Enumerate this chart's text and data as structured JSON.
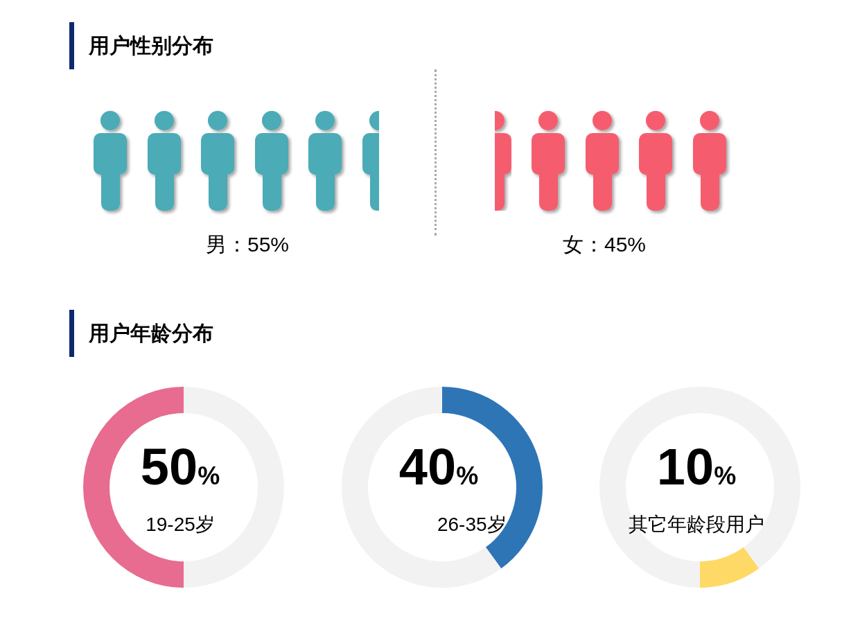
{
  "chart_data": [
    {
      "type": "other",
      "title": "用户性别分布",
      "categories": [
        "男",
        "女"
      ],
      "values": [
        55,
        45
      ],
      "colors": [
        "#4babb6",
        "#f55d6e"
      ],
      "value_labels": [
        "：55%",
        "：45%"
      ]
    },
    {
      "type": "donut",
      "title": "用户年龄分布",
      "categories": [
        null,
        "19-25岁"
      ],
      "values": [
        50,
        50
      ],
      "colors": [
        "#f2f2f2",
        "#e76c90"
      ],
      "value_labels": [
        null,
        "50%"
      ]
    },
    {
      "type": "donut",
      "categories": [
        "26-35岁",
        null
      ],
      "values": [
        40,
        60
      ],
      "colors": [
        "#2e75b6",
        "#f2f2f2"
      ],
      "value_labels": [
        "40%",
        null
      ]
    },
    {
      "type": "donut",
      "categories": [
        null,
        "其它年龄段用户",
        null
      ],
      "values": [
        40,
        10,
        50
      ],
      "colors": [
        "#f2f2f2",
        "#ffd966",
        "#f2f2f2"
      ],
      "value_labels": [
        null,
        "10%",
        null
      ]
    }
  ]
}
